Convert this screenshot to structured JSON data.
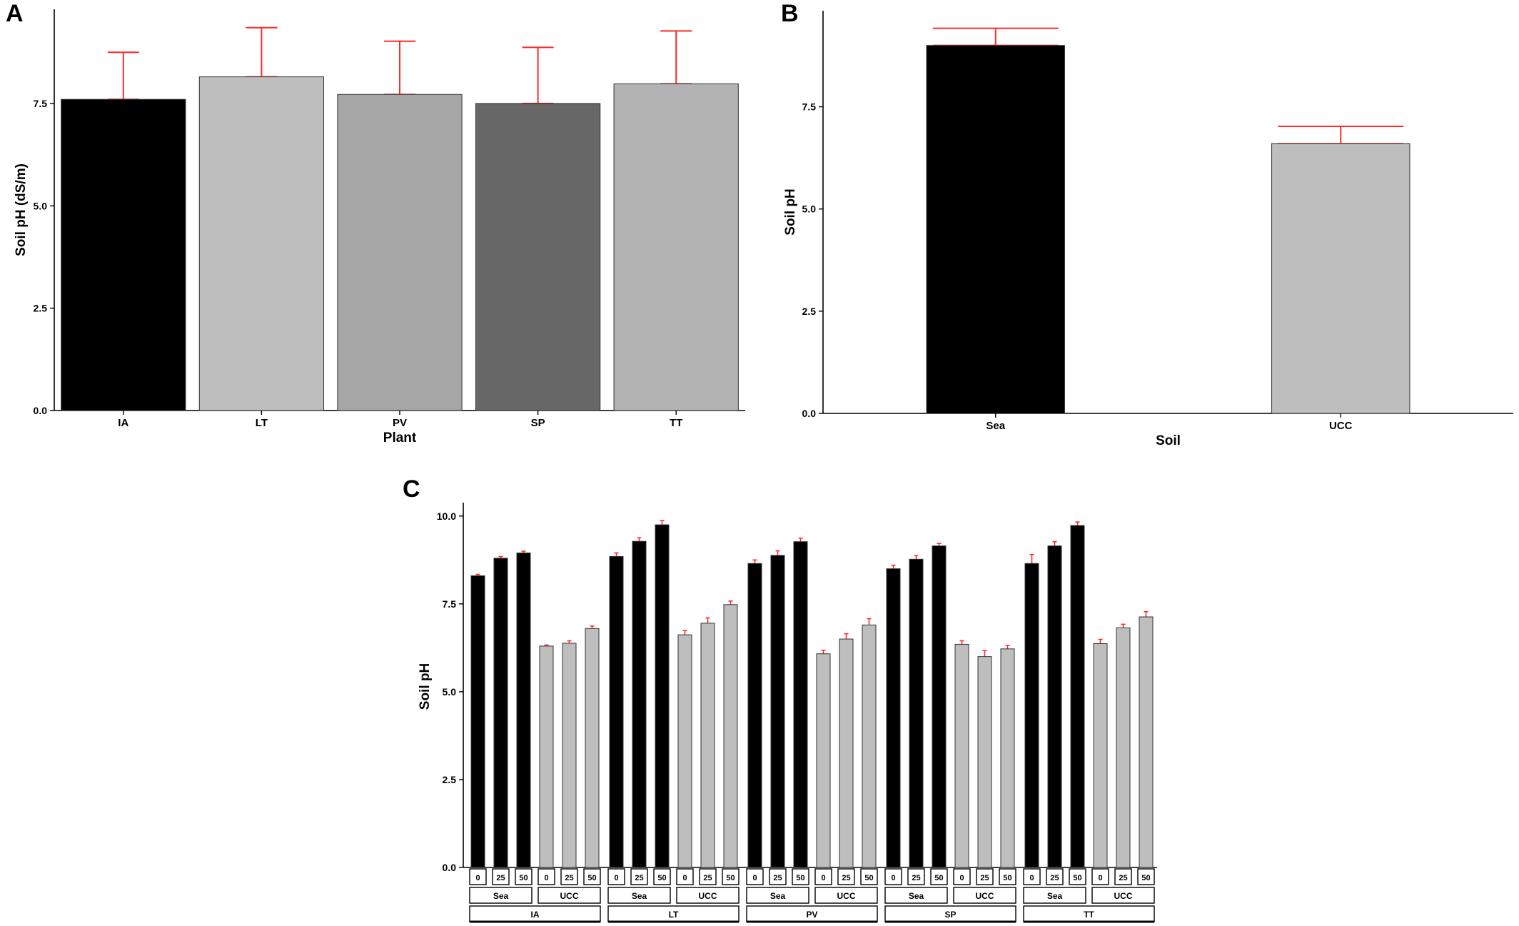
{
  "panels": {
    "a": {
      "letter": "A"
    },
    "b": {
      "letter": "B"
    },
    "c": {
      "letter": "C"
    }
  },
  "colors": {
    "black": "#000000",
    "grey_light": "#bebebe",
    "grey_pv": "#a6a6a6",
    "grey_sp": "#676767",
    "grey_tt": "#b3b3b3",
    "error_bar": "#ff2a2a"
  },
  "chart_data": [
    {
      "id": "A",
      "type": "bar",
      "xlabel": "Plant",
      "ylabel": "Soil pH (dS/m)",
      "categories": [
        "IA",
        "LT",
        "PV",
        "SP",
        "TT"
      ],
      "values": [
        7.6,
        8.15,
        7.72,
        7.5,
        7.98
      ],
      "error_upper": [
        8.75,
        9.35,
        9.02,
        8.87,
        9.27
      ],
      "bar_colors": [
        "#000000",
        "#bebebe",
        "#a6a6a6",
        "#676767",
        "#b3b3b3"
      ],
      "ylim": [
        0,
        9.8
      ],
      "yticks": [
        "0.0",
        "2.5",
        "5.0",
        "7.5"
      ],
      "grid": false
    },
    {
      "id": "B",
      "type": "bar",
      "xlabel": "Soil",
      "ylabel": "Soil pH",
      "categories": [
        "Sea",
        "UCC"
      ],
      "values": [
        9.0,
        6.6
      ],
      "error_upper": [
        9.42,
        7.02
      ],
      "bar_colors": [
        "#000000",
        "#bebebe"
      ],
      "ylim": [
        0,
        9.85
      ],
      "yticks": [
        "0.0",
        "2.5",
        "5.0",
        "7.5"
      ],
      "grid": false
    },
    {
      "id": "C",
      "type": "bar",
      "xlabel": "",
      "ylabel": "Soil pH",
      "ylim": [
        0,
        10.3
      ],
      "yticks": [
        "0.0",
        "2.5",
        "5.0",
        "7.5",
        "10.0"
      ],
      "grid": false,
      "doses": [
        "0",
        "25",
        "50"
      ],
      "soils": [
        "Sea",
        "UCC"
      ],
      "plants": [
        {
          "name": "IA",
          "Sea": [
            8.3,
            8.8,
            8.95
          ],
          "UCC": [
            6.3,
            6.38,
            6.8
          ],
          "Sea_err": [
            0.04,
            0.05,
            0.05
          ],
          "UCC_err": [
            0.03,
            0.07,
            0.07
          ]
        },
        {
          "name": "LT",
          "Sea": [
            8.85,
            9.28,
            9.75
          ],
          "UCC": [
            6.62,
            6.95,
            7.48
          ],
          "Sea_err": [
            0.1,
            0.1,
            0.12
          ],
          "UCC_err": [
            0.12,
            0.15,
            0.1
          ]
        },
        {
          "name": "PV",
          "Sea": [
            8.65,
            8.88,
            9.27
          ],
          "UCC": [
            6.08,
            6.5,
            6.9
          ],
          "Sea_err": [
            0.1,
            0.13,
            0.1
          ],
          "UCC_err": [
            0.1,
            0.15,
            0.18
          ]
        },
        {
          "name": "SP",
          "Sea": [
            8.5,
            8.77,
            9.15
          ],
          "UCC": [
            6.35,
            6.0,
            6.22
          ],
          "Sea_err": [
            0.1,
            0.1,
            0.07
          ],
          "UCC_err": [
            0.1,
            0.17,
            0.1
          ]
        },
        {
          "name": "TT",
          "Sea": [
            8.65,
            9.15,
            9.73
          ],
          "UCC": [
            6.37,
            6.82,
            7.13
          ],
          "Sea_err": [
            0.25,
            0.12,
            0.1
          ],
          "UCC_err": [
            0.12,
            0.1,
            0.15
          ]
        }
      ]
    }
  ]
}
